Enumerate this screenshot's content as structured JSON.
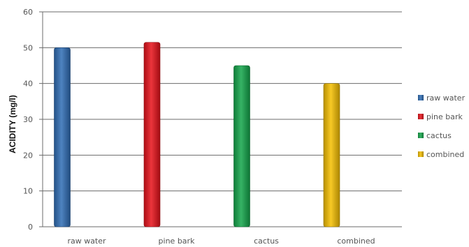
{
  "chart_data": {
    "type": "bar",
    "ylabel": "ACIDITY (mg/l)",
    "ylim": [
      0,
      60
    ],
    "yticks": [
      0,
      10,
      20,
      30,
      40,
      50,
      60
    ],
    "grid": true,
    "legend": "right",
    "categories": [
      "raw water",
      "pine bark",
      "cactus",
      "combined"
    ],
    "values": [
      50,
      51.5,
      45,
      40
    ],
    "colors": [
      "#2f6db5",
      "#e8111a",
      "#12a64a",
      "#f5c000"
    ],
    "legend_entries": [
      "raw water",
      "pine bark",
      "cactus",
      "combined"
    ]
  }
}
